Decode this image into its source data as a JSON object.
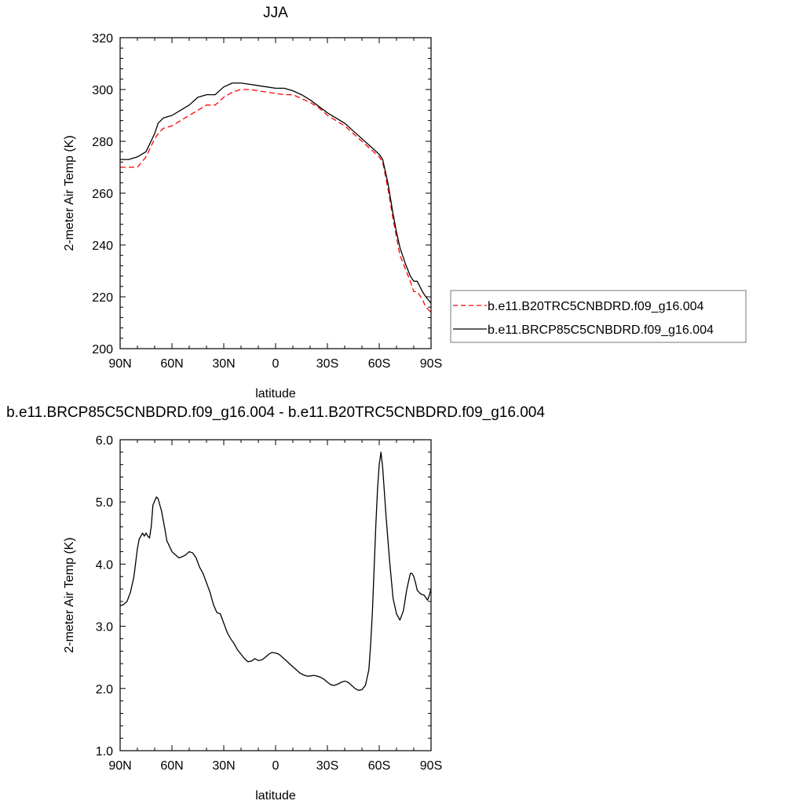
{
  "chart_data": [
    {
      "type": "line",
      "title": "JJA",
      "xlabel": "latitude",
      "ylabel": "2-meter Air Temp (K)",
      "xlim": [
        90,
        -90
      ],
      "ylim": [
        200,
        320
      ],
      "x_tick_values": [
        90,
        60,
        30,
        0,
        -30,
        -60,
        -90
      ],
      "x_tick_labels": [
        "90N",
        "60N",
        "30N",
        "0",
        "30S",
        "60S",
        "90S"
      ],
      "y_tick_values": [
        200,
        220,
        240,
        260,
        280,
        300,
        320
      ],
      "y_tick_labels": [
        "200",
        "220",
        "240",
        "260",
        "280",
        "300",
        "320"
      ],
      "grid": false,
      "legend_position": "right",
      "x": [
        90,
        85,
        80,
        75,
        70,
        68,
        65,
        60,
        55,
        50,
        45,
        40,
        35,
        30,
        25,
        20,
        15,
        10,
        5,
        0,
        -5,
        -10,
        -15,
        -20,
        -25,
        -30,
        -35,
        -40,
        -45,
        -50,
        -55,
        -60,
        -62,
        -65,
        -68,
        -70,
        -72,
        -75,
        -78,
        -80,
        -82,
        -85,
        -87,
        -90
      ],
      "series": [
        {
          "name": "b.e11.B20TRC5CNBDRD.f09_g16.004",
          "color": "#ff0000",
          "dash": "dashed",
          "values": [
            270,
            270,
            270,
            274,
            281,
            283,
            285,
            286,
            288,
            290,
            292,
            294,
            294,
            297,
            299,
            300,
            300,
            299.5,
            299,
            298.5,
            298,
            298,
            296.5,
            295,
            293,
            290,
            288,
            286,
            283,
            280,
            277,
            274,
            272,
            262,
            250,
            243,
            236,
            231,
            226,
            222,
            222,
            219,
            216,
            214
          ]
        },
        {
          "name": "b.e11.BRCP85C5CNBDRD.f09_g16.004",
          "color": "#000000",
          "dash": "solid",
          "values": [
            273,
            273,
            274,
            276,
            283,
            287,
            289,
            290,
            292,
            294,
            297,
            298,
            298,
            301,
            302.5,
            302.5,
            302,
            301.5,
            301,
            300.5,
            300.5,
            299.5,
            298,
            296,
            293.5,
            291,
            289,
            287,
            284,
            281,
            278,
            275,
            273,
            264,
            252,
            245,
            239,
            233,
            228,
            226,
            226,
            222,
            220,
            217.5
          ]
        }
      ]
    },
    {
      "type": "line",
      "title": "b.e11.BRCP85C5CNBDRD.f09_g16.004 - b.e11.B20TRC5CNBDRD.f09_g16.004",
      "xlabel": "latitude",
      "ylabel": "2-meter Air Temp (K)",
      "xlim": [
        90,
        -90
      ],
      "ylim": [
        1.0,
        6.0
      ],
      "x_tick_values": [
        90,
        60,
        30,
        0,
        -30,
        -60,
        -90
      ],
      "x_tick_labels": [
        "90N",
        "60N",
        "30N",
        "0",
        "30S",
        "60S",
        "90S"
      ],
      "y_tick_values": [
        1.0,
        2.0,
        3.0,
        4.0,
        5.0,
        6.0
      ],
      "y_tick_labels": [
        "1.0",
        "2.0",
        "3.0",
        "4.0",
        "5.0",
        "6.0"
      ],
      "grid": false,
      "x": [
        90,
        88,
        86,
        84,
        82,
        80,
        79,
        77,
        76,
        75,
        74,
        73,
        72,
        71,
        69,
        68,
        66,
        64,
        63,
        62,
        60,
        58,
        56,
        54,
        52,
        50,
        48,
        46,
        44,
        42,
        40,
        38,
        36,
        34,
        32,
        30,
        28,
        26,
        24,
        22,
        20,
        18,
        16,
        14,
        12,
        10,
        8,
        6,
        4,
        2,
        0,
        -2,
        -4,
        -6,
        -8,
        -10,
        -12,
        -14,
        -16,
        -18,
        -20,
        -22,
        -24,
        -26,
        -28,
        -30,
        -32,
        -34,
        -36,
        -38,
        -40,
        -42,
        -44,
        -46,
        -48,
        -50,
        -52,
        -54,
        -55,
        -56,
        -57,
        -58,
        -59,
        -60,
        -61,
        -62,
        -63,
        -64,
        -65,
        -66,
        -67,
        -68,
        -70,
        -72,
        -74,
        -76,
        -78,
        -79,
        -80,
        -81,
        -82,
        -84,
        -86,
        -88,
        -89,
        -90
      ],
      "values": [
        3.33,
        3.35,
        3.4,
        3.55,
        3.8,
        4.25,
        4.4,
        4.5,
        4.45,
        4.5,
        4.45,
        4.42,
        4.6,
        4.95,
        5.08,
        5.05,
        4.85,
        4.55,
        4.38,
        4.32,
        4.2,
        4.15,
        4.1,
        4.12,
        4.15,
        4.2,
        4.18,
        4.1,
        3.95,
        3.85,
        3.7,
        3.55,
        3.35,
        3.22,
        3.2,
        3.05,
        2.9,
        2.8,
        2.72,
        2.62,
        2.55,
        2.48,
        2.43,
        2.44,
        2.48,
        2.45,
        2.46,
        2.5,
        2.55,
        2.58,
        2.57,
        2.55,
        2.5,
        2.45,
        2.4,
        2.35,
        2.3,
        2.25,
        2.22,
        2.2,
        2.2,
        2.21,
        2.2,
        2.18,
        2.15,
        2.1,
        2.06,
        2.05,
        2.07,
        2.1,
        2.12,
        2.1,
        2.05,
        2.0,
        1.97,
        1.98,
        2.05,
        2.3,
        2.7,
        3.2,
        3.9,
        4.6,
        5.2,
        5.6,
        5.8,
        5.55,
        5.15,
        4.75,
        4.4,
        4.05,
        3.75,
        3.45,
        3.2,
        3.1,
        3.25,
        3.6,
        3.85,
        3.85,
        3.8,
        3.7,
        3.58,
        3.52,
        3.5,
        3.42,
        3.5,
        3.6
      ]
    }
  ]
}
